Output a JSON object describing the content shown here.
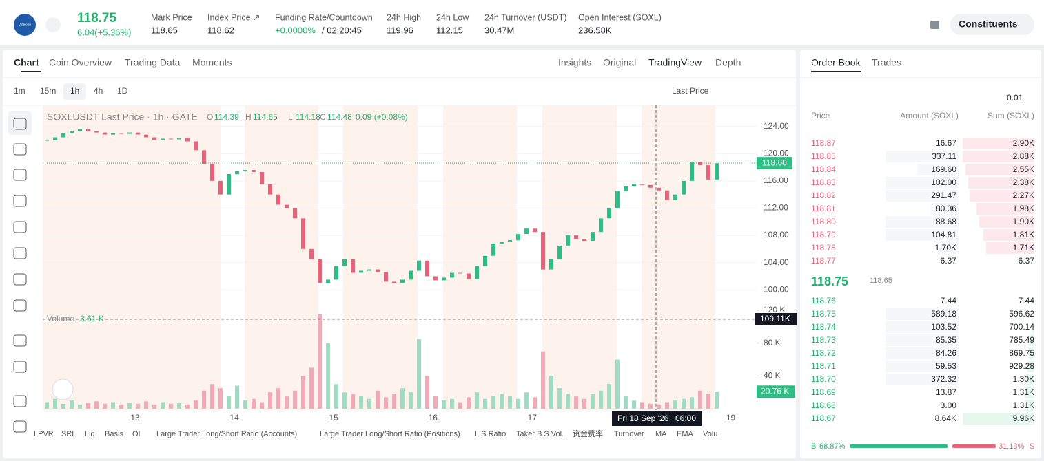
{
  "header": {
    "logo": "Direxion",
    "price": "118.75",
    "change": "6.04(+5.36%)",
    "stats": [
      {
        "label": "Mark Price",
        "value": "118.65"
      },
      {
        "label": "Index Price ↗",
        "value": "118.62"
      },
      {
        "label": "Funding Rate/Countdown",
        "value": "+0.0000%",
        "extra": "/ 02:20:45"
      },
      {
        "label": "24h High",
        "value": "119.96"
      },
      {
        "label": "24h Low",
        "value": "112.15"
      },
      {
        "label": "24h Turnover (USDT)",
        "value": "30.47M"
      },
      {
        "label": "Open Interest (SOXL)",
        "value": "236.58K"
      }
    ],
    "button": "Constituents"
  },
  "tabs": [
    "Chart",
    "Coin Overview",
    "Trading Data",
    "Moments"
  ],
  "views": [
    "Insights",
    "Original",
    "TradingView",
    "Depth"
  ],
  "intervals": [
    "1m",
    "15m",
    "1h",
    "4h",
    "1D"
  ],
  "price_type": "Last Price",
  "chart": {
    "type": "candlestick",
    "legend": {
      "title": "SOXLUSDT Last Price · 1h · GATE",
      "items": [
        [
          "O",
          "114.39"
        ],
        [
          "H",
          "114.65"
        ],
        [
          "L",
          "114.18"
        ],
        [
          "C",
          "114.48"
        ]
      ],
      "change": "0.09 (+0.08%)"
    },
    "closes": [
      122,
      122.4,
      123,
      123.3,
      123.6,
      123.3,
      123.1,
      122.8,
      123,
      122.9,
      123.1,
      122.8,
      122.4,
      122,
      122.2,
      122.1,
      122.3,
      121.8,
      120.5,
      118.5,
      116,
      114,
      117,
      117.4,
      117.6,
      117.3,
      115.5,
      114,
      112.5,
      112,
      110.5,
      106,
      104.5,
      101,
      101.5,
      103.5,
      104.5,
      102.5,
      102.8,
      103,
      102.6,
      101.2,
      101,
      101.5,
      102.8,
      104.3,
      102,
      101.4,
      101.8,
      102.5,
      102.4,
      101.6,
      103.5,
      105,
      106.8,
      107,
      107.3,
      108.2,
      109,
      108.5,
      103,
      104.5,
      106.5,
      108,
      107.5,
      107.2,
      108.5,
      110.5,
      112,
      114.5,
      115.2,
      115.5,
      115.4,
      115,
      114.6,
      113.2,
      114,
      116,
      118.8,
      118.3,
      116.2,
      118.6
    ],
    "ylim": [
      97.4,
      127.1
    ],
    "yticks": [
      {
        "value": 124,
        "label": "124.00"
      },
      {
        "value": 120,
        "label": "120.00"
      },
      {
        "value": 116,
        "label": "116.00"
      },
      {
        "value": 112,
        "label": "112.00"
      },
      {
        "value": 108,
        "label": "108.00"
      },
      {
        "value": 104,
        "label": "104.00"
      },
      {
        "value": 100,
        "label": "100.00"
      }
    ],
    "last_price_label": "118.60",
    "xlim": [
      12.07,
      19.26
    ],
    "xticks": [
      13,
      14,
      15,
      16,
      17,
      19
    ],
    "crosshair": {
      "date": "Fri 18 Sep '26",
      "time": "06:00"
    },
    "volume": {
      "label": "Volume",
      "value": "3.61 K",
      "values": [
        8,
        12,
        6,
        10,
        5,
        7,
        9,
        6,
        8,
        5,
        7,
        6,
        9,
        5,
        8,
        6,
        7,
        5,
        10,
        22,
        30,
        25,
        15,
        28,
        10,
        12,
        8,
        20,
        25,
        15,
        22,
        40,
        50,
        115,
        80,
        30,
        20,
        18,
        15,
        12,
        22,
        14,
        18,
        25,
        20,
        85,
        40,
        15,
        10,
        12,
        8,
        14,
        20,
        12,
        16,
        18,
        15,
        12,
        20,
        14,
        70,
        40,
        25,
        18,
        15,
        12,
        18,
        22,
        30,
        60,
        15,
        10,
        8,
        6,
        5,
        8,
        10,
        12,
        14,
        22,
        18,
        20.76
      ],
      "ylim": [
        0,
        120
      ],
      "yticks": [
        {
          "value": 120,
          "label": "120 K"
        },
        {
          "value": 80,
          "label": "80 K"
        },
        {
          "value": 40,
          "label": "40 K"
        }
      ],
      "line_value": 109.11,
      "line_label": "109.11K",
      "last_label": "20.76 K"
    }
  },
  "indicators": [
    "LPVR",
    "SRL",
    "Liq",
    "Basis",
    "OI",
    "Large Trader Long/Short Ratio (Accounts)",
    "Large Trader Long/Short Ratio (Positions)",
    "L.S Ratio",
    "Taker B.S Vol.",
    "资金费率",
    "Turnover",
    "MA",
    "EMA",
    "Volu"
  ],
  "order_book": {
    "tabs": [
      "Order Book",
      "Trades"
    ],
    "precision": "0.01",
    "headers": [
      "Price",
      "Amount (SOXL)",
      "Sum (SOXL)"
    ],
    "asks": [
      [
        "118.87",
        "16.67",
        "2.90K"
      ],
      [
        "118.85",
        "337.11",
        "2.88K"
      ],
      [
        "118.84",
        "169.60",
        "2.55K"
      ],
      [
        "118.83",
        "102.00",
        "2.38K"
      ],
      [
        "118.82",
        "291.47",
        "2.27K"
      ],
      [
        "118.81",
        "80.36",
        "1.98K"
      ],
      [
        "118.80",
        "88.68",
        "1.90K"
      ],
      [
        "118.79",
        "104.81",
        "1.81K"
      ],
      [
        "118.78",
        "1.70K",
        "1.71K"
      ],
      [
        "118.77",
        "6.37",
        "6.37"
      ]
    ],
    "mid_price": "118.75",
    "mark_price": "118.65",
    "bids": [
      [
        "118.76",
        "7.44",
        "7.44"
      ],
      [
        "118.75",
        "589.18",
        "596.62"
      ],
      [
        "118.74",
        "103.52",
        "700.14"
      ],
      [
        "118.73",
        "85.35",
        "785.49"
      ],
      [
        "118.72",
        "84.26",
        "869.75"
      ],
      [
        "118.71",
        "59.53",
        "929.28"
      ],
      [
        "118.70",
        "372.32",
        "1.30K"
      ],
      [
        "118.69",
        "13.87",
        "1.31K"
      ],
      [
        "118.68",
        "3.00",
        "1.31K"
      ],
      [
        "118.67",
        "8.64K",
        "9.96K"
      ]
    ],
    "buy_label": "B",
    "buy_pct": "68.87%",
    "sell_pct": "31.13%",
    "sell_label": "S"
  }
}
